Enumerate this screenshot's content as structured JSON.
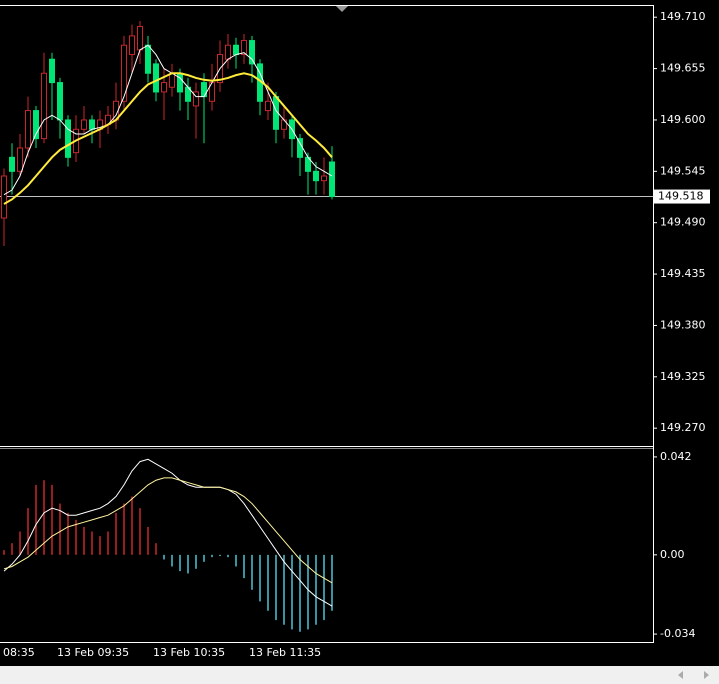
{
  "chart_data": [
    {
      "type": "candlestick",
      "categories": [
        null,
        null,
        null,
        null,
        null,
        null,
        null,
        "13 Feb 09:35",
        null,
        null,
        null,
        null,
        null,
        null,
        null,
        null,
        null,
        null,
        null,
        "13 Feb 10:35",
        null,
        null,
        null,
        null,
        null,
        null,
        null,
        null,
        null,
        null,
        null,
        "13 Feb 11:35",
        null,
        null,
        null,
        null,
        null,
        null,
        null,
        null,
        null,
        null
      ],
      "x_label_left": "08:35",
      "open": [
        149.495,
        149.56,
        149.545,
        149.57,
        149.61,
        149.58,
        149.665,
        149.64,
        149.6,
        149.565,
        149.59,
        149.6,
        149.59,
        149.595,
        149.6,
        149.62,
        149.67,
        149.675,
        149.68,
        149.66,
        149.63,
        149.635,
        149.65,
        149.635,
        149.615,
        149.64,
        149.62,
        149.64,
        149.665,
        149.68,
        149.67,
        149.685,
        149.66,
        149.61,
        149.625,
        149.59,
        149.6,
        149.58,
        149.56,
        149.545,
        149.535,
        149.555
      ],
      "high": [
        149.548,
        149.575,
        149.585,
        149.625,
        149.615,
        149.672,
        149.672,
        149.645,
        149.605,
        149.605,
        149.615,
        149.605,
        149.61,
        149.615,
        149.64,
        149.69,
        149.702,
        149.706,
        149.69,
        149.665,
        149.655,
        149.66,
        149.655,
        149.645,
        149.64,
        149.65,
        149.66,
        149.685,
        149.692,
        149.688,
        149.692,
        149.69,
        149.665,
        149.64,
        149.63,
        149.615,
        149.605,
        149.585,
        149.565,
        149.555,
        149.56,
        149.572
      ],
      "low": [
        149.465,
        149.52,
        149.54,
        149.56,
        149.57,
        149.575,
        149.6,
        149.58,
        149.55,
        149.555,
        149.585,
        149.575,
        149.57,
        149.585,
        149.59,
        149.61,
        149.65,
        149.66,
        149.64,
        149.62,
        149.6,
        149.625,
        149.61,
        149.6,
        149.58,
        149.575,
        149.61,
        149.63,
        149.655,
        149.655,
        149.66,
        149.64,
        149.605,
        149.6,
        149.575,
        149.58,
        149.56,
        149.54,
        149.52,
        149.52,
        149.52,
        149.515
      ],
      "close": [
        149.54,
        149.545,
        149.57,
        149.61,
        149.58,
        149.65,
        149.64,
        149.6,
        149.56,
        149.59,
        149.6,
        149.59,
        149.6,
        149.605,
        149.62,
        149.68,
        149.69,
        149.7,
        149.65,
        149.63,
        149.64,
        149.65,
        149.63,
        149.62,
        149.63,
        149.625,
        149.64,
        149.67,
        149.68,
        149.67,
        149.685,
        149.66,
        149.62,
        149.62,
        149.59,
        149.6,
        149.58,
        149.56,
        149.545,
        149.535,
        149.54,
        149.518
      ],
      "up_color": "#c8282c",
      "down_color": "#00e676",
      "lines": [
        {
          "color": "#ffffff",
          "values": [
            149.52,
            149.525,
            149.54,
            149.565,
            149.585,
            149.6,
            149.605,
            149.6,
            149.59,
            149.585,
            149.585,
            149.59,
            149.592,
            149.595,
            149.605,
            149.625,
            149.65,
            149.675,
            149.68,
            149.67,
            149.655,
            149.65,
            149.645,
            149.635,
            149.625,
            149.625,
            149.64,
            149.655,
            149.665,
            149.67,
            149.672,
            149.665,
            149.65,
            149.63,
            149.61,
            149.6,
            149.59,
            149.575,
            149.56,
            149.55,
            149.545,
            149.54
          ]
        },
        {
          "color": "#ffeb3b",
          "values": [
            149.51,
            149.515,
            149.522,
            149.53,
            149.54,
            149.55,
            149.56,
            149.568,
            149.573,
            149.578,
            149.582,
            149.586,
            149.59,
            149.595,
            149.6,
            149.61,
            149.62,
            149.63,
            149.638,
            149.642,
            149.646,
            149.65,
            149.65,
            149.648,
            149.645,
            149.643,
            149.642,
            149.643,
            149.645,
            149.648,
            149.65,
            149.648,
            149.642,
            149.635,
            149.625,
            149.615,
            149.605,
            149.595,
            149.585,
            149.578,
            149.57,
            149.56
          ]
        }
      ],
      "current_price": 149.518,
      "ylim": [
        149.252,
        149.722
      ],
      "yticks": [
        {
          "value": 149.71,
          "label": "149.710"
        },
        149.655,
        {
          "value": 149.6,
          "label": "149.600"
        },
        149.545,
        {
          "value": 149.49,
          "label": "149.490"
        },
        149.435,
        {
          "value": 149.38,
          "label": "149.380"
        },
        149.325,
        {
          "value": 149.27,
          "label": "149.270"
        }
      ]
    },
    {
      "type": "macd",
      "values": [
        0.002,
        0.005,
        0.01,
        0.02,
        0.03,
        0.032,
        0.03,
        0.022,
        0.018,
        0.015,
        0.012,
        0.01,
        0.008,
        0.01,
        0.018,
        0.022,
        0.025,
        0.02,
        0.012,
        0.005,
        -0.002,
        -0.005,
        -0.007,
        -0.008,
        -0.006,
        -0.003,
        -0.001,
        -0.0005,
        -0.001,
        -0.005,
        -0.01,
        -0.015,
        -0.02,
        -0.024,
        -0.028,
        -0.03,
        -0.032,
        -0.033,
        -0.032,
        -0.03,
        -0.028,
        -0.024
      ],
      "positive_color": "#c8282c",
      "negative_color": "#4fc3d7",
      "lines": [
        {
          "color": "#ffffff",
          "values": [
            -0.007,
            -0.004,
            0.0,
            0.006,
            0.013,
            0.018,
            0.02,
            0.019,
            0.017,
            0.017,
            0.018,
            0.019,
            0.02,
            0.022,
            0.025,
            0.03,
            0.036,
            0.04,
            0.041,
            0.039,
            0.037,
            0.035,
            0.032,
            0.03,
            0.029,
            0.029,
            0.029,
            0.029,
            0.028,
            0.026,
            0.022,
            0.017,
            0.012,
            0.007,
            0.002,
            -0.003,
            -0.007,
            -0.011,
            -0.015,
            -0.018,
            -0.02,
            -0.022
          ]
        },
        {
          "color": "#fff59d",
          "values": [
            -0.006,
            -0.005,
            -0.003,
            -0.001,
            0.002,
            0.005,
            0.008,
            0.01,
            0.012,
            0.013,
            0.014,
            0.015,
            0.016,
            0.017,
            0.019,
            0.021,
            0.024,
            0.027,
            0.03,
            0.032,
            0.033,
            0.033,
            0.032,
            0.031,
            0.03,
            0.029,
            0.029,
            0.029,
            0.028,
            0.027,
            0.025,
            0.022,
            0.018,
            0.014,
            0.01,
            0.006,
            0.002,
            -0.002,
            -0.005,
            -0.008,
            -0.01,
            -0.012
          ]
        }
      ],
      "ylim": [
        -0.0374,
        0.0454
      ],
      "yticks": [
        0.042,
        {
          "value": 0,
          "label": "0.00"
        },
        -0.034
      ]
    }
  ]
}
